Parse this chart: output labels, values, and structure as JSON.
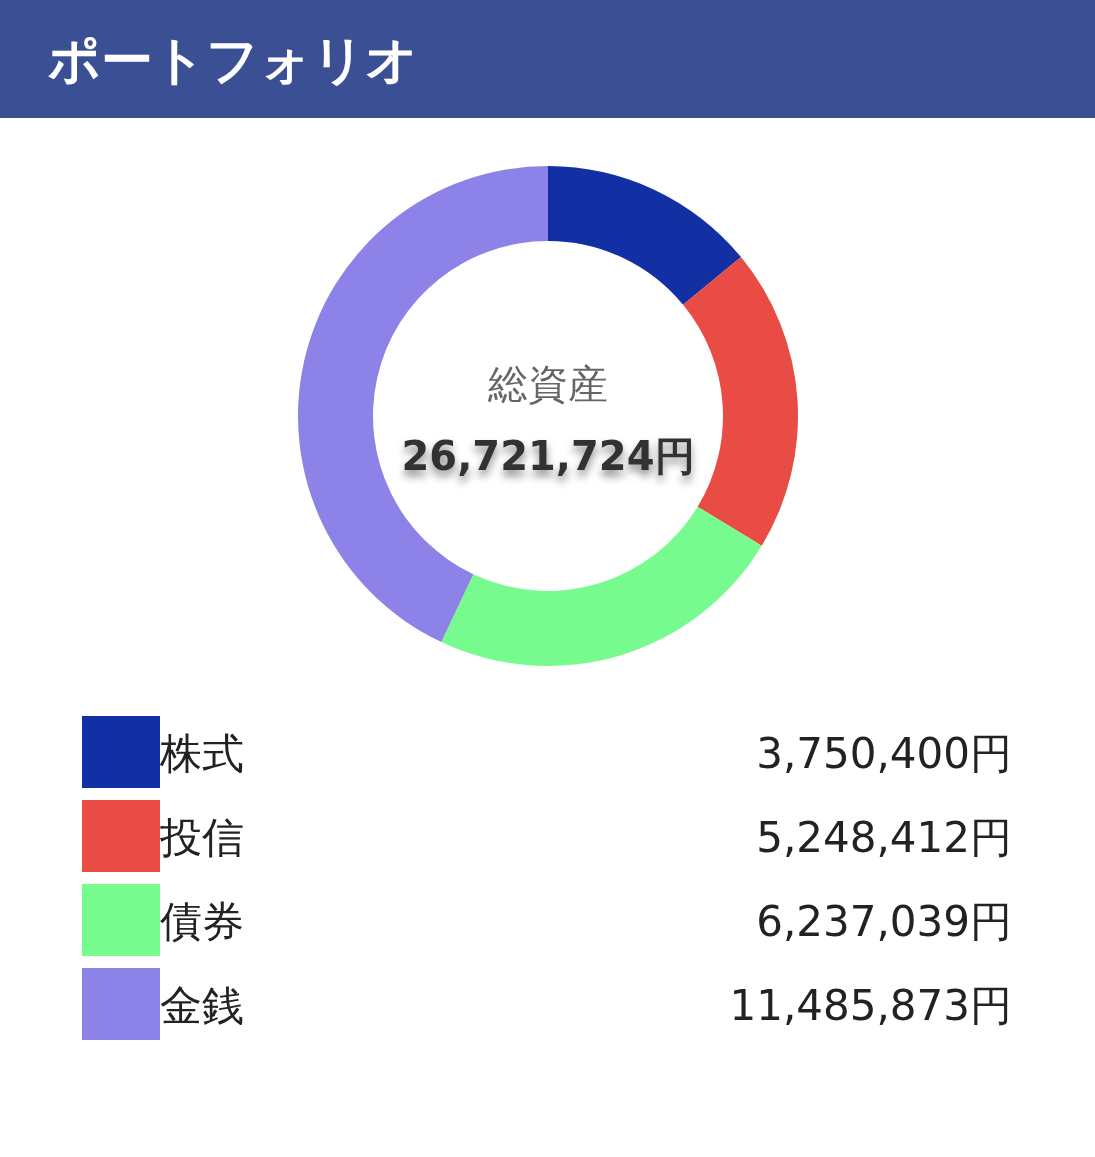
{
  "chart_data": {
    "type": "donut",
    "title": "ポートフォリオ",
    "categories": [
      "株式",
      "投信",
      "債券",
      "金銭"
    ],
    "values": [
      3750400,
      5248412,
      6237039,
      11485873
    ],
    "colors": [
      "#1230a3",
      "#e84c45",
      "#78fb8e",
      "#8c82e8"
    ],
    "value_labels": [
      "3,750,400円",
      "5,248,412円",
      "6,237,039円",
      "11,485,873円"
    ],
    "annotations": [
      "総資産",
      "26,721,724円"
    ],
    "legend": "bottom"
  }
}
